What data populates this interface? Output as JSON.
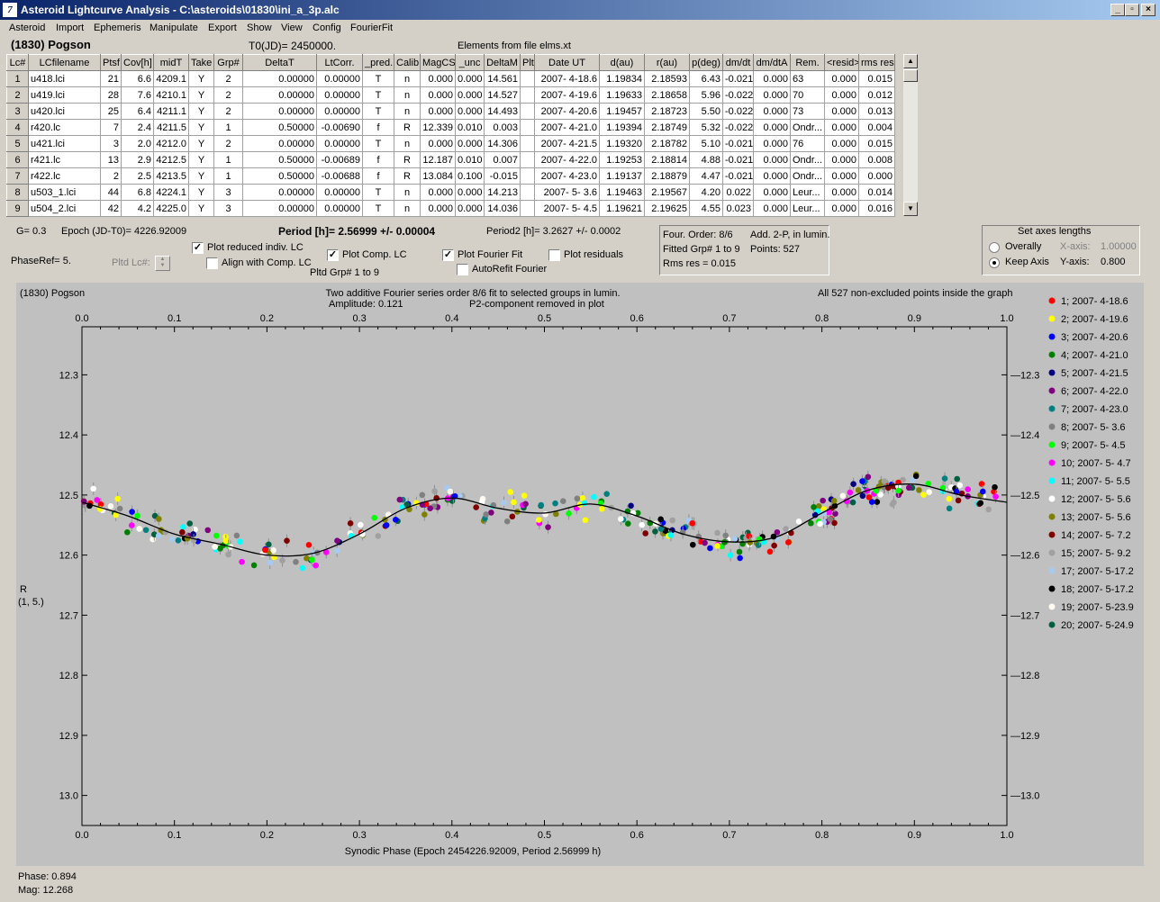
{
  "window": {
    "title": "Asteroid Lightcurve Analysis - C:\\asteroids\\01830\\ini_a_3p.alc",
    "icon_glyph": "7"
  },
  "menu": [
    "Asteroid",
    "Import",
    "Ephemeris",
    "Manipulate",
    "Export",
    "Show",
    "View",
    "Config",
    "FourierFit"
  ],
  "header": {
    "asteroid": "(1830) Pogson",
    "t0": "T0(JD)= 2450000.",
    "elements": "Elements from file elms.xt"
  },
  "table": {
    "columns": [
      "Lc#",
      "LCfilename",
      "Ptsf",
      "Cov[h]",
      "midT",
      "Take",
      "Grp#",
      "DeltaT",
      "LtCorr.",
      "_pred.",
      "Calib.",
      "MagCS",
      "_unc",
      "DeltaM",
      "Plt",
      "Date UT",
      "d(au)",
      "r(au)",
      "p(deg)",
      "dm/dt",
      "dm/dtA",
      "Rem.",
      "<resid>",
      "rms res"
    ],
    "rows": [
      [
        "1",
        "u418.lci",
        "21",
        "6.6",
        "4209.1",
        "Y",
        "2",
        "0.00000",
        "0.00000",
        "T",
        "n",
        "0.000",
        "0.000",
        "14.561",
        "",
        "2007- 4-18.6",
        "1.19834",
        "2.18593",
        "6.43",
        "-0.021",
        "0.000",
        "63",
        "0.000",
        "0.015"
      ],
      [
        "2",
        "u419.lci",
        "28",
        "7.6",
        "4210.1",
        "Y",
        "2",
        "0.00000",
        "0.00000",
        "T",
        "n",
        "0.000",
        "0.000",
        "14.527",
        "",
        "2007- 4-19.6",
        "1.19633",
        "2.18658",
        "5.96",
        "-0.022",
        "0.000",
        "70",
        "0.000",
        "0.012"
      ],
      [
        "3",
        "u420.lci",
        "25",
        "6.4",
        "4211.1",
        "Y",
        "2",
        "0.00000",
        "0.00000",
        "T",
        "n",
        "0.000",
        "0.000",
        "14.493",
        "",
        "2007- 4-20.6",
        "1.19457",
        "2.18723",
        "5.50",
        "-0.022",
        "0.000",
        "73",
        "0.000",
        "0.013"
      ],
      [
        "4",
        "r420.lc",
        "7",
        "2.4",
        "4211.5",
        "Y",
        "1",
        "0.50000",
        "-0.00690",
        "f",
        "R",
        "12.339",
        "0.010",
        "0.003",
        "",
        "2007- 4-21.0",
        "1.19394",
        "2.18749",
        "5.32",
        "-0.022",
        "0.000",
        "Ondr...",
        "0.000",
        "0.004"
      ],
      [
        "5",
        "u421.lci",
        "3",
        "2.0",
        "4212.0",
        "Y",
        "2",
        "0.00000",
        "0.00000",
        "T",
        "n",
        "0.000",
        "0.000",
        "14.306",
        "",
        "2007- 4-21.5",
        "1.19320",
        "2.18782",
        "5.10",
        "-0.021",
        "0.000",
        "76",
        "0.000",
        "0.015"
      ],
      [
        "6",
        "r421.lc",
        "13",
        "2.9",
        "4212.5",
        "Y",
        "1",
        "0.50000",
        "-0.00689",
        "f",
        "R",
        "12.187",
        "0.010",
        "0.007",
        "",
        "2007- 4-22.0",
        "1.19253",
        "2.18814",
        "4.88",
        "-0.021",
        "0.000",
        "Ondr...",
        "0.000",
        "0.008"
      ],
      [
        "7",
        "r422.lc",
        "2",
        "2.5",
        "4213.5",
        "Y",
        "1",
        "0.50000",
        "-0.00688",
        "f",
        "R",
        "13.084",
        "0.100",
        "-0.015",
        "",
        "2007- 4-23.0",
        "1.19137",
        "2.18879",
        "4.47",
        "-0.021",
        "0.000",
        "Ondr...",
        "0.000",
        "0.000"
      ],
      [
        "8",
        "u503_1.lci",
        "44",
        "6.8",
        "4224.1",
        "Y",
        "3",
        "0.00000",
        "0.00000",
        "T",
        "n",
        "0.000",
        "0.000",
        "14.213",
        "",
        "2007- 5- 3.6",
        "1.19463",
        "2.19567",
        "4.20",
        "0.022",
        "0.000",
        "Leur...",
        "0.000",
        "0.014"
      ],
      [
        "9",
        "u504_2.lci",
        "42",
        "4.2",
        "4225.0",
        "Y",
        "3",
        "0.00000",
        "0.00000",
        "T",
        "n",
        "0.000",
        "0.000",
        "14.036",
        "",
        "2007- 5- 4.5",
        "1.19621",
        "2.19625",
        "4.55",
        "0.023",
        "0.000",
        "Leur...",
        "0.000",
        "0.016"
      ]
    ]
  },
  "info": {
    "g": "G= 0.3",
    "epoch": "Epoch (JD-T0)= 4226.92009",
    "period": "Period [h]= 2.56999 +/- 0.00004",
    "period2": "Period2 [h]= 3.2627 +/- 0.0002",
    "phaseref": "PhaseRef= 5.",
    "pltd_lc": "Pltd Lc#:",
    "pltd_grp": "Pltd Grp#  1   to   9"
  },
  "checkboxes": [
    {
      "label": "Plot reduced indiv. LC",
      "checked": true
    },
    {
      "label": "Align with Comp. LC",
      "checked": false
    },
    {
      "label": "Plot Comp. LC",
      "checked": true
    },
    {
      "label": "Plot Fourier Fit",
      "checked": true
    },
    {
      "label": "AutoRefit Fourier",
      "checked": false
    },
    {
      "label": "Plot residuals",
      "checked": false
    }
  ],
  "fourier": {
    "order": "Four. Order:  8/6",
    "add": "Add. 2-P, in lumin.",
    "fitted": "Fitted Grp# 1 to 9",
    "points": "Points: 527",
    "rms": "Rms res     = 0.015"
  },
  "axes_panel": {
    "title": "Set axes lengths",
    "overally": "Overally",
    "keep": "Keep Axis",
    "xaxis_label": "X-axis:",
    "xaxis_value": "1.00000",
    "yaxis_label": "Y-axis:",
    "yaxis_value": "0.800"
  },
  "plot": {
    "name": "(1830) Pogson",
    "line1": "Two additive Fourier series order 8/6 fit to selected groups in lumin.",
    "line2a": "Amplitude: 0.121",
    "line2b": "P2-component removed in plot",
    "right": "All 527 non-excluded points inside the graph",
    "ylabel1": "R",
    "ylabel2": "(1, 5.)",
    "xlabel": "Synodic Phase (Epoch 2454226.92009, Period 2.56999 h)"
  },
  "chart_data": {
    "type": "scatter",
    "xlim": [
      0.0,
      1.0
    ],
    "ylim": [
      12.22,
      13.05
    ],
    "y_reversed": true,
    "x_ticks": [
      "0.0",
      "0.1",
      "0.2",
      "0.3",
      "0.4",
      "0.5",
      "0.6",
      "0.7",
      "0.8",
      "0.9",
      "1.0"
    ],
    "y_ticks": [
      "12.3",
      "12.4",
      "12.5",
      "12.6",
      "12.7",
      "12.8",
      "12.9",
      "13.0"
    ],
    "grid": false,
    "legend_position": "right",
    "fit_curve": {
      "x": [
        0.0,
        0.05,
        0.1,
        0.15,
        0.2,
        0.25,
        0.3,
        0.35,
        0.4,
        0.45,
        0.5,
        0.55,
        0.6,
        0.65,
        0.7,
        0.75,
        0.8,
        0.85,
        0.9,
        0.95,
        1.0
      ],
      "y": [
        12.512,
        12.535,
        12.565,
        12.582,
        12.6,
        12.597,
        12.565,
        12.522,
        12.505,
        12.522,
        12.53,
        12.515,
        12.535,
        12.565,
        12.578,
        12.57,
        12.53,
        12.492,
        12.482,
        12.5,
        12.512
      ]
    },
    "series": [
      {
        "name": "1; 2007- 4-18.6",
        "color": "#ff0000"
      },
      {
        "name": "2; 2007- 4-19.6",
        "color": "#ffff00"
      },
      {
        "name": "3; 2007- 4-20.6",
        "color": "#0000ff"
      },
      {
        "name": "4; 2007- 4-21.0",
        "color": "#008000"
      },
      {
        "name": "5; 2007- 4-21.5",
        "color": "#000080"
      },
      {
        "name": "6; 2007- 4-22.0",
        "color": "#800080"
      },
      {
        "name": "7; 2007- 4-23.0",
        "color": "#008080"
      },
      {
        "name": "8; 2007- 5- 3.6",
        "color": "#808080"
      },
      {
        "name": "9; 2007- 5- 4.5",
        "color": "#00ff00"
      },
      {
        "name": "10; 2007- 5- 4.7",
        "color": "#ff00ff"
      },
      {
        "name": "11; 2007- 5- 5.5",
        "color": "#00ffff"
      },
      {
        "name": "12; 2007- 5- 5.6",
        "color": "#ffffff"
      },
      {
        "name": "13; 2007- 5- 5.6",
        "color": "#808000"
      },
      {
        "name": "14; 2007- 5- 7.2",
        "color": "#800000"
      },
      {
        "name": "15; 2007- 5- 9.2",
        "color": "#a0a0a0"
      },
      {
        "name": "17; 2007- 5-17.2",
        "color": "#a6caf0"
      },
      {
        "name": "18; 2007- 5-17.2",
        "color": "#000000"
      },
      {
        "name": "19; 2007- 5-23.9",
        "color": "#fffbf0"
      },
      {
        "name": "20; 2007- 5-24.9",
        "color": "#006040"
      }
    ]
  },
  "status": {
    "phase": "Phase:  0.894",
    "mag": "Mag:    12.268"
  }
}
